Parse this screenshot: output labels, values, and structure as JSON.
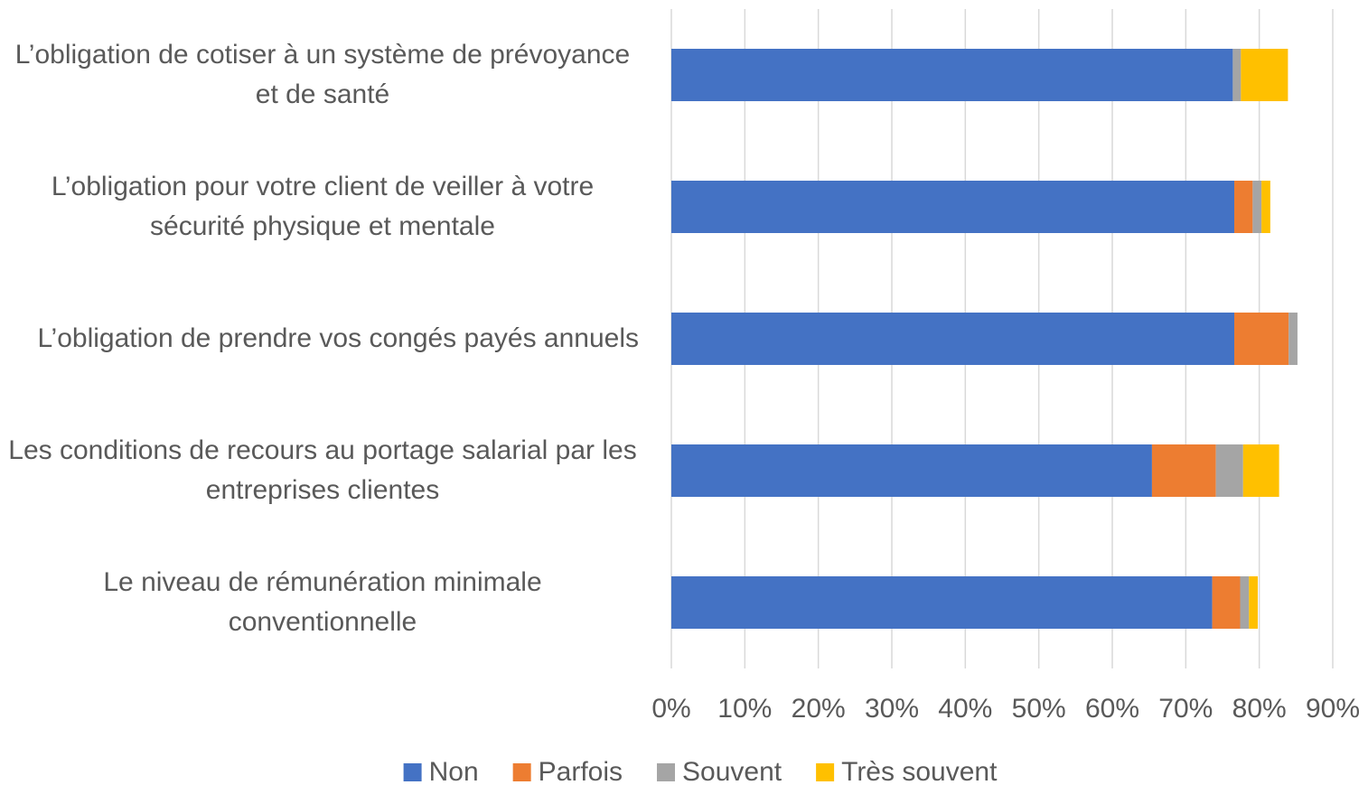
{
  "chart_data": {
    "type": "stacked_barh",
    "categories": [
      "L’obligation de cotiser à un système de prévoyance et de santé",
      "L’obligation pour votre client de veiller à votre sécurité physique et mentale",
      "L’obligation de prendre vos congés payés annuels",
      "Les conditions de recours au portage salarial par les entreprises clientes",
      "Le niveau de rémunération minimale conventionnelle"
    ],
    "series": [
      {
        "name": "Non",
        "color": "#4472c4",
        "values": [
          76.4,
          76.6,
          76.6,
          65.4,
          73.6
        ]
      },
      {
        "name": "Parfois",
        "color": "#ed7d31",
        "values": [
          0,
          2.5,
          7.4,
          8.7,
          3.8
        ]
      },
      {
        "name": "Souvent",
        "color": "#a5a5a5",
        "values": [
          1.1,
          1.2,
          1.2,
          3.7,
          1.2
        ]
      },
      {
        "name": "Très souvent",
        "color": "#ffc000",
        "values": [
          6.4,
          1.2,
          0,
          4.9,
          1.2
        ]
      }
    ],
    "xlim": [
      0,
      90
    ],
    "xticks": [
      {
        "value": 0,
        "label": "0%"
      },
      {
        "value": 10,
        "label": "10%"
      },
      {
        "value": 20,
        "label": "20%"
      },
      {
        "value": 30,
        "label": "30%"
      },
      {
        "value": 40,
        "label": "40%"
      },
      {
        "value": 50,
        "label": "50%"
      },
      {
        "value": 60,
        "label": "60%"
      },
      {
        "value": 70,
        "label": "70%"
      },
      {
        "value": 80,
        "label": "80%"
      },
      {
        "value": 90,
        "label": "90%"
      }
    ],
    "grid": true,
    "legend": "bottom"
  }
}
